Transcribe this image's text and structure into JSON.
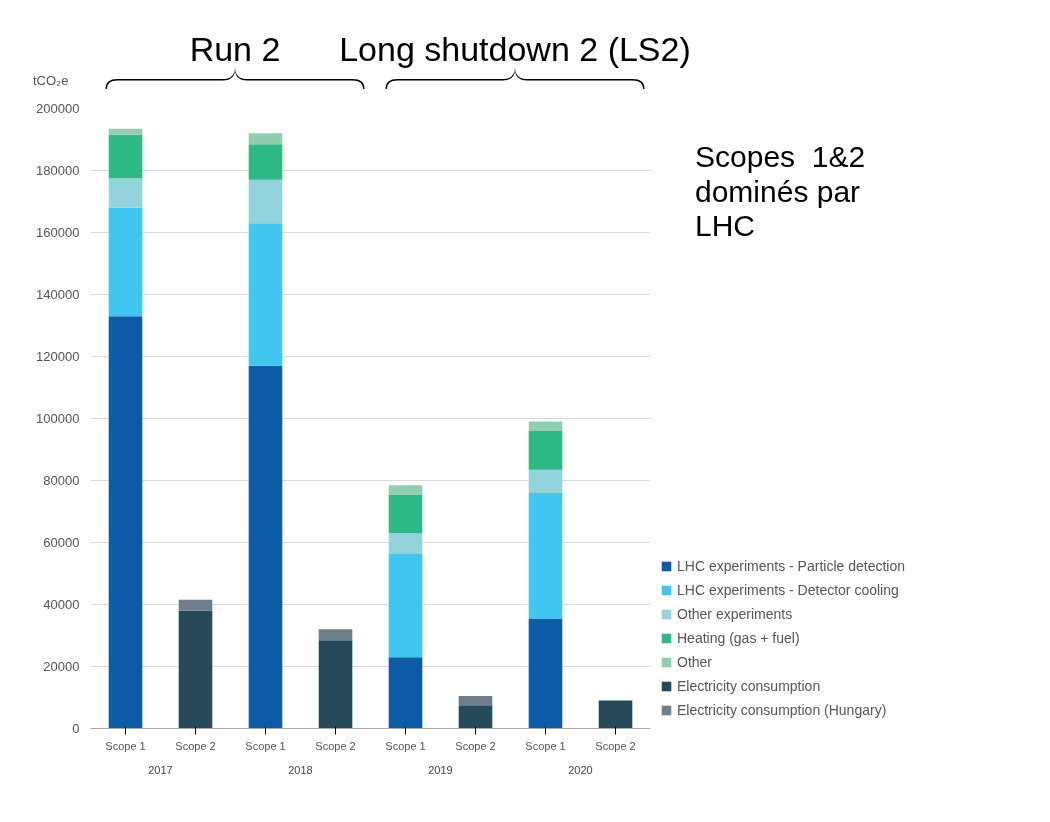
{
  "chart_data": {
    "type": "bar",
    "stacked": true,
    "ylabel": "tCO₂e",
    "categories": [
      "Scope 1",
      "Scope 2",
      "Scope 1",
      "Scope 2",
      "Scope 1",
      "Scope 2",
      "Scope 1",
      "Scope 2"
    ],
    "series": [
      {
        "name": "LHC experiments - Particle detection",
        "color": "#0d5ca8",
        "values": [
          133000,
          null,
          117000,
          null,
          23000,
          null,
          35500,
          null
        ]
      },
      {
        "name": "LHC experiments - Detector cooling",
        "color": "#41c6f0",
        "values": [
          35000,
          null,
          46000,
          null,
          33500,
          null,
          40500,
          null
        ]
      },
      {
        "name": "Other experiments",
        "color": "#93d3dc",
        "values": [
          9500,
          null,
          14000,
          null,
          6500,
          null,
          7500,
          null
        ]
      },
      {
        "name": "Heating (gas + fuel)",
        "color": "#2eb886",
        "values": [
          14000,
          null,
          11500,
          null,
          12500,
          null,
          12500,
          null
        ]
      },
      {
        "name": "Other",
        "color": "#8fcfb0",
        "values": [
          2000,
          null,
          3500,
          null,
          3000,
          null,
          3000,
          null
        ]
      },
      {
        "name": "Electricity consumption",
        "color": "#264a5a",
        "values": [
          null,
          38000,
          null,
          28500,
          null,
          7500,
          null,
          9000
        ]
      },
      {
        "name": "Electricity consumption (Hungary)",
        "color": "#6e7e8a",
        "values": [
          null,
          3500,
          null,
          3500,
          null,
          3000,
          null,
          null
        ]
      }
    ],
    "ylim": [
      0,
      200000
    ],
    "yticks": [
      0,
      20000,
      40000,
      60000,
      80000,
      100000,
      120000,
      140000,
      160000,
      180000,
      200000
    ],
    "grid": "y",
    "legend": "bottom right",
    "annotations": [
      "2017",
      "2018",
      "2019",
      "2020",
      "Run 2",
      "Long shutdown 2 (LS2)",
      "Scopes  1&2\ndominés par\nLHC"
    ]
  }
}
